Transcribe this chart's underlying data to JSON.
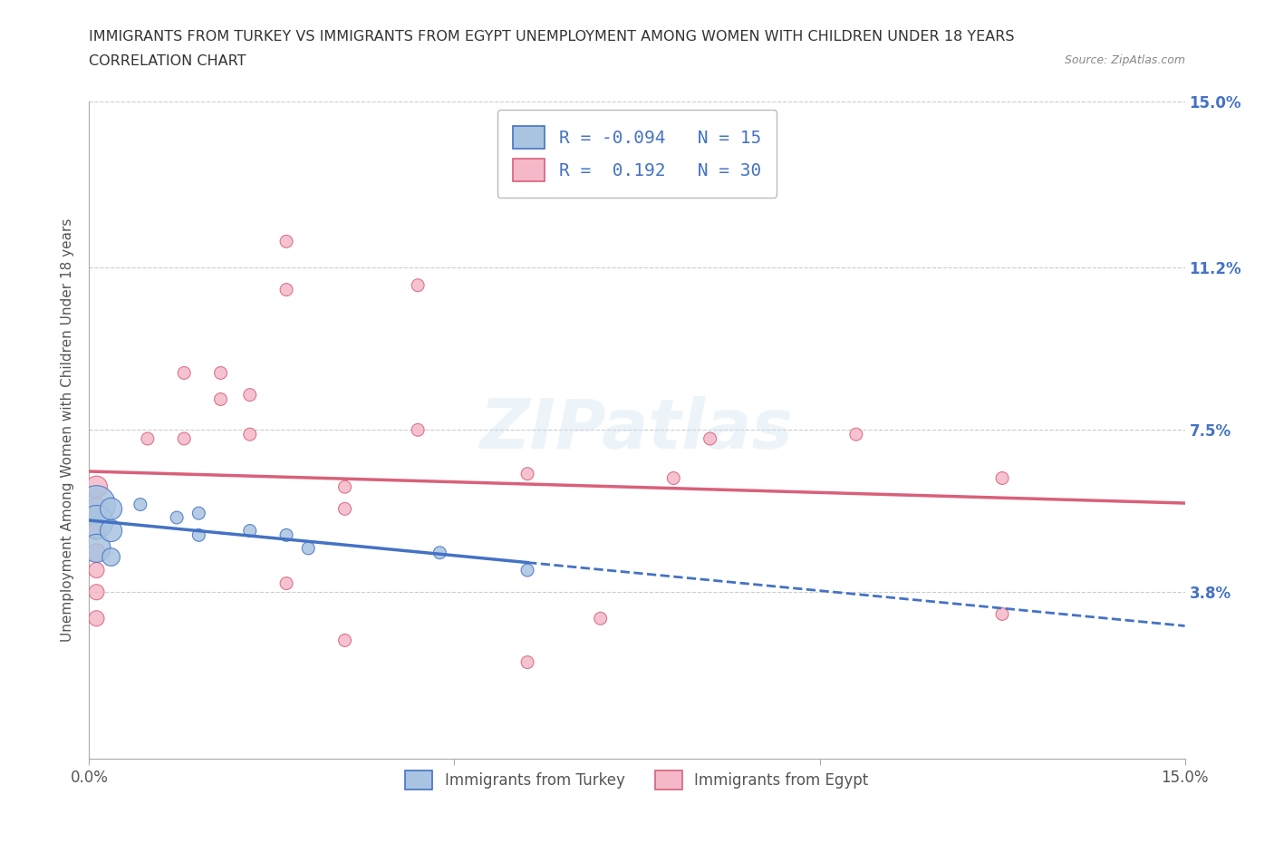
{
  "title_line1": "IMMIGRANTS FROM TURKEY VS IMMIGRANTS FROM EGYPT UNEMPLOYMENT AMONG WOMEN WITH CHILDREN UNDER 18 YEARS",
  "title_line2": "CORRELATION CHART",
  "source": "Source: ZipAtlas.com",
  "ylabel": "Unemployment Among Women with Children Under 18 years",
  "xlim": [
    0.0,
    0.15
  ],
  "ylim": [
    0.0,
    0.15
  ],
  "ytick_vals": [
    0.038,
    0.075,
    0.112,
    0.15
  ],
  "ytick_labels": [
    "3.8%",
    "7.5%",
    "11.2%",
    "15.0%"
  ],
  "watermark": "ZIPatlas",
  "turkey_color": "#a8c4e0",
  "turkey_color_line": "#4472c4",
  "egypt_color": "#f4b8c8",
  "egypt_color_line": "#d9607a",
  "turkey_R": -0.094,
  "turkey_N": 15,
  "egypt_R": 0.192,
  "egypt_N": 30,
  "turkey_x": [
    0.001,
    0.001,
    0.001,
    0.003,
    0.003,
    0.003,
    0.007,
    0.012,
    0.015,
    0.015,
    0.022,
    0.027,
    0.03,
    0.048,
    0.06
  ],
  "turkey_y": [
    0.058,
    0.054,
    0.048,
    0.057,
    0.052,
    0.046,
    0.058,
    0.055,
    0.056,
    0.051,
    0.052,
    0.051,
    0.048,
    0.047,
    0.043
  ],
  "turkey_sizes": [
    900,
    700,
    500,
    300,
    300,
    200,
    100,
    100,
    100,
    100,
    100,
    100,
    100,
    100,
    100
  ],
  "egypt_x": [
    0.001,
    0.001,
    0.001,
    0.001,
    0.001,
    0.001,
    0.001,
    0.008,
    0.013,
    0.013,
    0.018,
    0.018,
    0.022,
    0.022,
    0.027,
    0.027,
    0.027,
    0.035,
    0.035,
    0.035,
    0.045,
    0.045,
    0.06,
    0.06,
    0.07,
    0.08,
    0.085,
    0.105,
    0.125,
    0.125
  ],
  "egypt_y": [
    0.062,
    0.057,
    0.052,
    0.047,
    0.043,
    0.038,
    0.032,
    0.073,
    0.088,
    0.073,
    0.082,
    0.088,
    0.083,
    0.074,
    0.107,
    0.118,
    0.04,
    0.057,
    0.062,
    0.027,
    0.075,
    0.108,
    0.065,
    0.022,
    0.032,
    0.064,
    0.073,
    0.074,
    0.064,
    0.033
  ],
  "egypt_sizes": [
    300,
    300,
    200,
    200,
    150,
    150,
    150,
    100,
    100,
    100,
    100,
    100,
    100,
    100,
    100,
    100,
    100,
    100,
    100,
    100,
    100,
    100,
    100,
    100,
    100,
    100,
    100,
    100,
    100,
    100
  ],
  "background_color": "#ffffff",
  "grid_color": "#cccccc",
  "title_color": "#333333",
  "right_tick_color": "#4472c4",
  "legend_R_color": "#4472c4"
}
